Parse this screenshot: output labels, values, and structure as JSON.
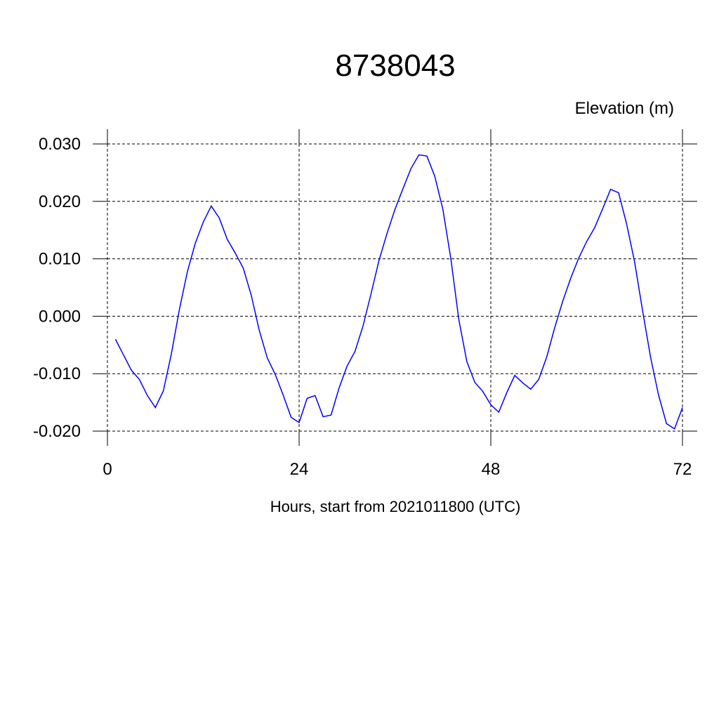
{
  "chart_data": {
    "type": "line",
    "title": "8738043",
    "y_label": "Elevation (m)",
    "x_label": "Hours, start from 2021011800 (UTC)",
    "x": [
      1,
      2,
      3,
      4,
      5,
      6,
      7,
      8,
      9,
      10,
      11,
      12,
      13,
      14,
      15,
      16,
      17,
      18,
      19,
      20,
      21,
      22,
      23,
      24,
      25,
      26,
      27,
      28,
      29,
      30,
      31,
      32,
      33,
      34,
      35,
      36,
      37,
      38,
      39,
      40,
      41,
      42,
      43,
      44,
      45,
      46,
      47,
      48,
      49,
      50,
      51,
      52,
      53,
      54,
      55,
      56,
      57,
      58,
      59,
      60,
      61,
      62,
      63,
      64,
      65,
      66,
      67,
      68,
      69,
      70,
      71,
      72
    ],
    "series": [
      {
        "color": "#0000ff",
        "values": [
          -0.004,
          -0.0067,
          -0.0094,
          -0.011,
          -0.0138,
          -0.0159,
          -0.013,
          -0.0066,
          0.0011,
          0.0077,
          0.0127,
          0.0164,
          0.0192,
          0.0171,
          0.0134,
          0.011,
          0.0084,
          0.0037,
          -0.0024,
          -0.0072,
          -0.0101,
          -0.0137,
          -0.0176,
          -0.0185,
          -0.0143,
          -0.0138,
          -0.0175,
          -0.0172,
          -0.0125,
          -0.0087,
          -0.0061,
          -0.0017,
          0.0039,
          0.0097,
          0.0144,
          0.0186,
          0.0222,
          0.0257,
          0.0281,
          0.0279,
          0.0243,
          0.0186,
          0.01,
          -0.0006,
          -0.0079,
          -0.0115,
          -0.0131,
          -0.0154,
          -0.0167,
          -0.0133,
          -0.0103,
          -0.0116,
          -0.0127,
          -0.011,
          -0.0071,
          -0.002,
          0.0026,
          0.0066,
          0.0101,
          0.013,
          0.0154,
          0.0187,
          0.0221,
          0.0215,
          0.0161,
          0.0095,
          0.001,
          -0.0071,
          -0.0137,
          -0.0187,
          -0.0196,
          -0.0159
        ]
      }
    ],
    "xlim": [
      0,
      72
    ],
    "xticks": [
      0,
      24,
      48,
      72
    ],
    "ylim": [
      -0.02,
      0.03
    ],
    "yticks": [
      {
        "value": -0.02,
        "label": "-0.020"
      },
      {
        "value": -0.01,
        "label": "-0.010"
      },
      {
        "value": 0,
        "label": "0.000"
      },
      {
        "value": 0.01,
        "label": "0.010"
      },
      {
        "value": 0.02,
        "label": "0.020"
      },
      {
        "value": 0.03,
        "label": "0.030"
      }
    ],
    "grid": true
  }
}
